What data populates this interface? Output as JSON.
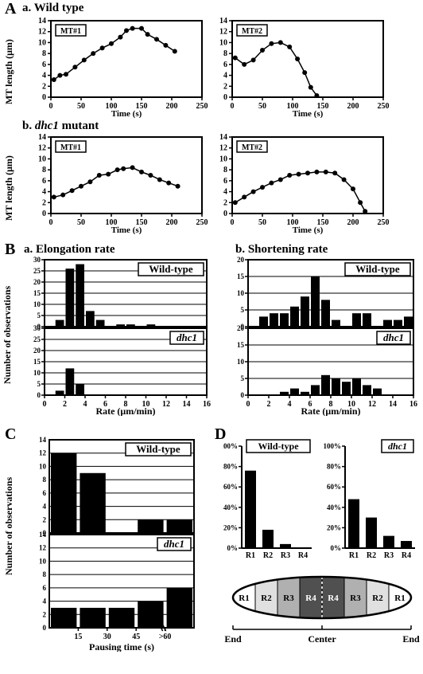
{
  "panelA": {
    "letter": "A",
    "sub_a": {
      "label": "a. Wild type"
    },
    "sub_b": {
      "label_prefix": "b. ",
      "label_italic": "dhc1",
      "label_suffix": " mutant"
    },
    "ylabel": "MT length (μm)",
    "xlabel": "Time (s)",
    "xlim": [
      0,
      250
    ],
    "xtick_step": 50,
    "ylim": [
      0,
      14
    ],
    "ytick_step": 2,
    "marker_radius": 3,
    "line_color": "#000000",
    "charts": {
      "wild_type_1": {
        "box_label": "MT#1",
        "points": [
          [
            5,
            3.2
          ],
          [
            15,
            4.0
          ],
          [
            25,
            4.2
          ],
          [
            40,
            5.5
          ],
          [
            55,
            6.8
          ],
          [
            70,
            8.0
          ],
          [
            85,
            9.0
          ],
          [
            100,
            9.8
          ],
          [
            115,
            11.0
          ],
          [
            125,
            12.2
          ],
          [
            135,
            12.6
          ],
          [
            150,
            12.6
          ],
          [
            160,
            11.5
          ],
          [
            175,
            10.6
          ],
          [
            190,
            9.5
          ],
          [
            205,
            8.4
          ]
        ]
      },
      "wild_type_2": {
        "box_label": "MT#2",
        "points": [
          [
            5,
            7.2
          ],
          [
            20,
            6.0
          ],
          [
            35,
            6.8
          ],
          [
            50,
            8.6
          ],
          [
            65,
            9.8
          ],
          [
            80,
            10.0
          ],
          [
            95,
            9.2
          ],
          [
            108,
            7.0
          ],
          [
            120,
            4.5
          ],
          [
            130,
            1.8
          ],
          [
            140,
            0.3
          ]
        ]
      },
      "dhc1_1": {
        "box_label": "MT#1",
        "points": [
          [
            5,
            3.0
          ],
          [
            20,
            3.4
          ],
          [
            35,
            4.2
          ],
          [
            50,
            5.0
          ],
          [
            65,
            5.8
          ],
          [
            80,
            7.0
          ],
          [
            95,
            7.2
          ],
          [
            110,
            8.0
          ],
          [
            120,
            8.2
          ],
          [
            135,
            8.4
          ],
          [
            150,
            7.6
          ],
          [
            165,
            7.0
          ],
          [
            180,
            6.2
          ],
          [
            195,
            5.6
          ],
          [
            210,
            5.0
          ]
        ]
      },
      "dhc1_2": {
        "box_label": "MT#2",
        "points": [
          [
            5,
            2.0
          ],
          [
            20,
            3.0
          ],
          [
            35,
            4.0
          ],
          [
            50,
            4.8
          ],
          [
            65,
            5.6
          ],
          [
            80,
            6.2
          ],
          [
            95,
            7.0
          ],
          [
            110,
            7.2
          ],
          [
            125,
            7.4
          ],
          [
            140,
            7.6
          ],
          [
            155,
            7.6
          ],
          [
            170,
            7.4
          ],
          [
            185,
            6.2
          ],
          [
            200,
            4.5
          ],
          [
            212,
            2.0
          ],
          [
            220,
            0.4
          ]
        ]
      }
    }
  },
  "panelB": {
    "letter": "B",
    "sub_a": {
      "label": "a. Elongation rate"
    },
    "sub_b": {
      "label": "b. Shortening rate"
    },
    "ylabel": "Number of observations",
    "xlabel": "Rate (μm/min)",
    "xlim": [
      0,
      16
    ],
    "xtick_step": 2,
    "bar_color": "#000000",
    "elong": {
      "ylim": [
        0,
        30
      ],
      "ytick_step": 5,
      "wt_label": "Wild-type",
      "dhc1_label": "dhc1",
      "wt_bars": {
        "0.5": 0,
        "1.5": 3,
        "2.5": 26,
        "3.5": 28,
        "4.5": 7,
        "5.5": 3,
        "6.5": 0,
        "7.5": 1,
        "8.5": 1,
        "9.5": 0,
        "10.5": 1
      },
      "dhc1_bars": {
        "0.5": 0,
        "1.5": 2,
        "2.5": 12,
        "3.5": 5,
        "4.5": 0,
        "5.5": 0
      }
    },
    "short": {
      "ylim": [
        0,
        20
      ],
      "ytick_step": 5,
      "wt_label": "Wild-type",
      "dhc1_label": "dhc1",
      "wt_bars": {
        "0.5": 0,
        "1.5": 3,
        "2.5": 4,
        "3.5": 4,
        "4.5": 6,
        "5.5": 9,
        "6.5": 15,
        "7.5": 8,
        "8.5": 2,
        "9.5": 0,
        "10.5": 4,
        "11.5": 4,
        "12.5": 0,
        "13.5": 2,
        "14.5": 2,
        "15.5": 3
      },
      "dhc1_bars": {
        "0.5": 0,
        "1.5": 0,
        "2.5": 0,
        "3.5": 1,
        "4.5": 2,
        "5.5": 1,
        "6.5": 3,
        "7.5": 6,
        "8.5": 5,
        "9.5": 4,
        "10.5": 5,
        "11.5": 3,
        "12.5": 2
      }
    }
  },
  "panelC": {
    "letter": "C",
    "ylabel": "Number of observations",
    "xlabel": "Pausing time (s)",
    "xticks": [
      "15",
      "30",
      "45",
      ">60"
    ],
    "ylim": [
      0,
      14
    ],
    "ytick_step": 2,
    "bar_color": "#000000",
    "wt_label": "Wild-type",
    "dhc1_label": "dhc1",
    "wt_bars": [
      12,
      9,
      0,
      2,
      2
    ],
    "dhc1_bars": [
      3,
      3,
      3,
      4,
      6
    ]
  },
  "panelD": {
    "letter": "D",
    "wt_label": "Wild-type",
    "dhc1_label": "dhc1",
    "ylim": [
      0,
      100
    ],
    "ytick_step": 20,
    "ytick_suffix": "%",
    "categories": [
      "R1",
      "R2",
      "R3",
      "R4"
    ],
    "bar_color": "#000000",
    "wt_bars": [
      76,
      18,
      4,
      0
    ],
    "dhc1_bars": [
      48,
      30,
      12,
      7
    ],
    "diagram": {
      "region_labels": [
        "R1",
        "R2",
        "R3",
        "R4",
        "R4",
        "R3",
        "R2",
        "R1"
      ],
      "region_fills": [
        "#ffffff",
        "#e0e0e0",
        "#b0b0b0",
        "#505050",
        "#505050",
        "#b0b0b0",
        "#e0e0e0",
        "#ffffff"
      ],
      "end_label": "End",
      "center_label": "Center"
    }
  }
}
